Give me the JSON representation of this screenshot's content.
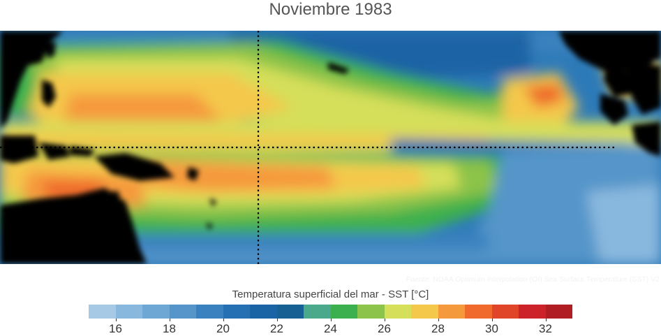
{
  "title": "Noviembre 1983",
  "source_note": "Fuente: NOAA Optimum Interpolation (OI) Sea Surface Temperature (SST) V2",
  "colorbar": {
    "label": "Temperatura superficial del mar - SST  [°C]",
    "min": 15,
    "max": 33,
    "ticks": [
      "16",
      "18",
      "20",
      "22",
      "24",
      "26",
      "28",
      "30",
      "32"
    ],
    "colors": [
      "#a6c9e6",
      "#89b8de",
      "#6ea7d4",
      "#5595c9",
      "#3a82bf",
      "#2470b3",
      "#1a63a5",
      "#166094",
      "#4aa98b",
      "#3cb04e",
      "#8cc34a",
      "#d5df5a",
      "#f4c84b",
      "#f59a3c",
      "#ef6a2c",
      "#e04429",
      "#cc2229",
      "#b01d23"
    ]
  },
  "map": {
    "land_color": "#000000",
    "guide_lines": "dotted"
  }
}
